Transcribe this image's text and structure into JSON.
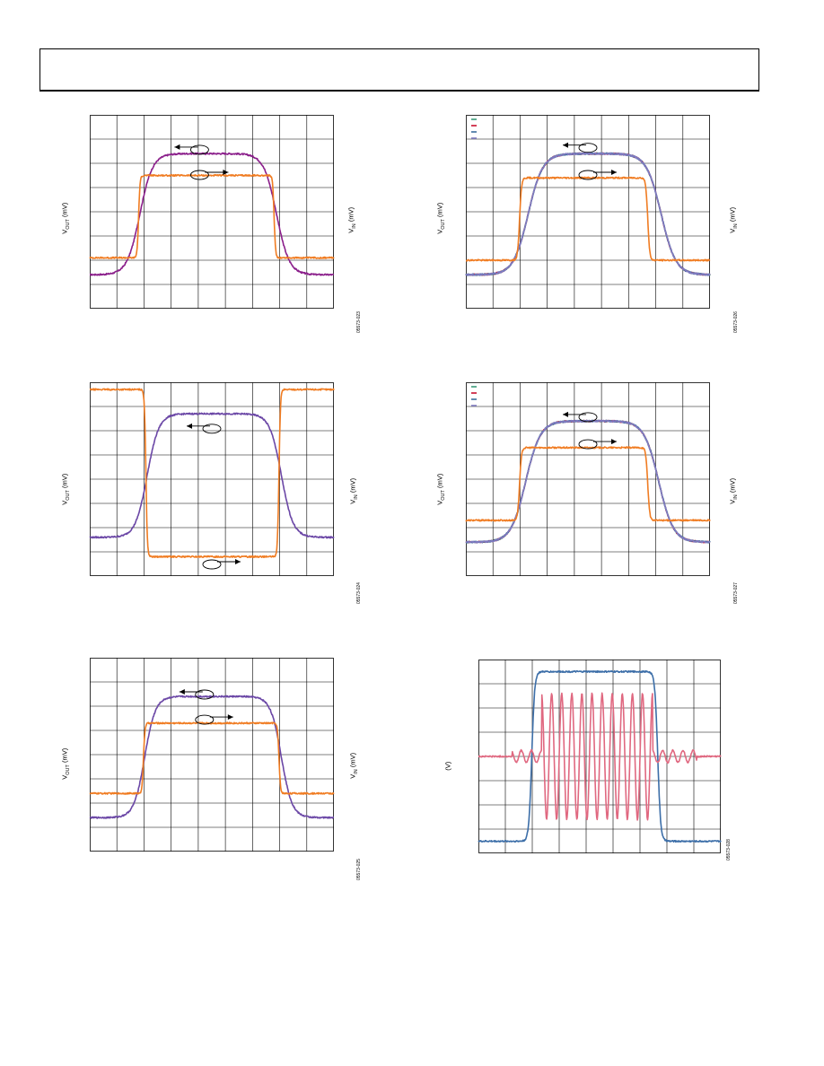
{
  "page": {
    "header_text": ""
  },
  "figures": [
    {
      "id": "fig23",
      "figure_id": "05573-023",
      "ylabel_left": {
        "main": "V",
        "sub": "OUT",
        "unit": " (mV)"
      },
      "ylabel_right": {
        "main": "V",
        "sub": "IN",
        "unit": " (mV)"
      }
    },
    {
      "id": "fig26",
      "figure_id": "05573-026",
      "ylabel_left": {
        "main": "V",
        "sub": "OUT",
        "unit": " (mV)"
      },
      "ylabel_right": {
        "main": "V",
        "sub": "IN",
        "unit": " (mV)"
      },
      "legend_colors": [
        "#3a9a78",
        "#c8102e",
        "#3c6e9c",
        "#7f7ac0"
      ]
    },
    {
      "id": "fig24",
      "figure_id": "05573-024",
      "ylabel_left": {
        "main": "V",
        "sub": "OUT",
        "unit": " (mV)"
      },
      "ylabel_right": {
        "main": "V",
        "sub": "IN",
        "unit": " (mV)"
      }
    },
    {
      "id": "fig27",
      "figure_id": "05573-027",
      "ylabel_left": {
        "main": "V",
        "sub": "OUT",
        "unit": " (mV)"
      },
      "ylabel_right": {
        "main": "V",
        "sub": "IN",
        "unit": " (mV)"
      },
      "legend_colors": [
        "#3a9a78",
        "#c8102e",
        "#3c6e9c",
        "#7f7ac0"
      ]
    },
    {
      "id": "fig25",
      "figure_id": "05573-025",
      "ylabel_left": {
        "main": "V",
        "sub": "OUT",
        "unit": " (mV)"
      },
      "ylabel_right": {
        "main": "V",
        "sub": "IN",
        "unit": " (mV)"
      }
    },
    {
      "id": "fig28",
      "figure_id": "05573-028",
      "ylabel_left": {
        "main": "",
        "sub": "",
        "unit": "(V)"
      }
    }
  ],
  "chart_data": [
    {
      "type": "line",
      "grid": true,
      "series": [
        {
          "color": "#8b1f8b",
          "values": [
            -2.6,
            -2.6,
            2.4,
            2.4,
            -2.6,
            -2.6
          ]
        },
        {
          "color": "#f07c22",
          "values": [
            -1.9,
            -1.9,
            1.5,
            1.5,
            -1.9,
            -1.9
          ]
        }
      ],
      "annotations": [
        "left-arrow-oval",
        "right-arrow-oval"
      ]
    },
    {
      "type": "line",
      "grid": true,
      "series": [
        {
          "color": "#3a9a78",
          "values": [
            -2.6,
            -2.6,
            2.4,
            2.4,
            -2.6,
            -2.6
          ]
        },
        {
          "color": "#c8102e",
          "values": [
            -2.6,
            -2.6,
            2.4,
            2.4,
            -2.6,
            -2.6
          ]
        },
        {
          "color": "#3c6e9c",
          "values": [
            -2.6,
            -2.6,
            2.4,
            2.4,
            -2.6,
            -2.6
          ]
        },
        {
          "color": "#7f7ac0",
          "values": [
            -2.6,
            -2.6,
            2.4,
            2.4,
            -2.6,
            -2.6
          ]
        },
        {
          "color": "#f07c22",
          "values": [
            -2.0,
            -2.0,
            1.4,
            1.4,
            -2.0,
            -2.0
          ]
        }
      ],
      "annotations": [
        "left-arrow-oval",
        "right-arrow-oval"
      ]
    },
    {
      "type": "line",
      "grid": true,
      "series": [
        {
          "color": "#6b47a6",
          "values": [
            -2.4,
            -2.4,
            2.7,
            2.7,
            -2.4,
            -2.4
          ]
        },
        {
          "color": "#f07c22",
          "values": [
            3.7,
            3.7,
            -3.2,
            -3.2,
            3.7,
            3.7
          ]
        }
      ],
      "annotations": [
        "left-arrow-oval",
        "right-arrow-oval"
      ]
    },
    {
      "type": "line",
      "grid": true,
      "series": [
        {
          "color": "#3a9a78",
          "values": [
            -2.6,
            -2.6,
            2.4,
            2.4,
            -2.6,
            -2.6
          ]
        },
        {
          "color": "#c8102e",
          "values": [
            -2.6,
            -2.6,
            2.4,
            2.4,
            -2.6,
            -2.6
          ]
        },
        {
          "color": "#3c6e9c",
          "values": [
            -2.6,
            -2.6,
            2.4,
            2.4,
            -2.6,
            -2.6
          ]
        },
        {
          "color": "#7f7ac0",
          "values": [
            -2.6,
            -2.6,
            2.4,
            2.4,
            -2.6,
            -2.6
          ]
        },
        {
          "color": "#f07c22",
          "values": [
            -1.7,
            -1.7,
            1.3,
            1.3,
            -1.7,
            -1.7
          ]
        }
      ],
      "annotations": [
        "left-arrow-oval",
        "right-arrow-oval"
      ]
    },
    {
      "type": "line",
      "grid": true,
      "series": [
        {
          "color": "#6b47a6",
          "values": [
            -2.6,
            -2.6,
            2.4,
            2.4,
            -2.6,
            -2.6
          ]
        },
        {
          "color": "#f07c22",
          "values": [
            -1.6,
            -1.6,
            1.3,
            1.3,
            -1.6,
            -1.6
          ]
        }
      ],
      "annotations": [
        "left-arrow-oval",
        "right-arrow-oval"
      ]
    },
    {
      "type": "line",
      "grid": true,
      "series": [
        {
          "color": "#3c6ea8",
          "values": [
            -3.5,
            -3.5,
            3.5,
            3.5,
            -3.5,
            -3.5
          ]
        },
        {
          "color": "#e06880",
          "values": [
            0,
            0,
            2.6,
            -2.6,
            0,
            0
          ]
        }
      ]
    }
  ]
}
